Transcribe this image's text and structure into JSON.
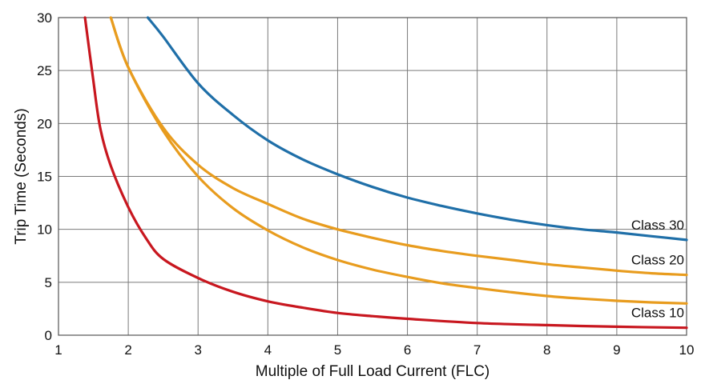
{
  "chart_data": {
    "type": "line",
    "title": "",
    "xlabel": "Multiple of Full Load Current (FLC)",
    "ylabel": "Trip Time (Seconds)",
    "xlim": [
      1,
      10
    ],
    "ylim": [
      0,
      30
    ],
    "xticks": [
      1,
      2,
      3,
      4,
      5,
      6,
      7,
      8,
      9,
      10
    ],
    "yticks": [
      0,
      5,
      10,
      15,
      20,
      25,
      30
    ],
    "grid": true,
    "legend": "none",
    "series": [
      {
        "name": "Class 30",
        "color": "#1f6fa8",
        "x": [
          2.28,
          2.5,
          3,
          3.5,
          4,
          4.5,
          5,
          5.5,
          6,
          6.5,
          7,
          7.5,
          8,
          8.5,
          9,
          9.5,
          10
        ],
        "y": [
          30,
          28.2,
          23.8,
          20.8,
          18.4,
          16.6,
          15.2,
          14.0,
          13.0,
          12.2,
          11.5,
          10.9,
          10.4,
          10.0,
          9.7,
          9.35,
          9.0
        ]
      },
      {
        "name": "Class 20",
        "color": "#e89c1e",
        "x": [
          1.75,
          2,
          2.5,
          3,
          3.5,
          4,
          4.5,
          5,
          5.5,
          6,
          6.5,
          7,
          7.5,
          8,
          8.5,
          9,
          9.5,
          10
        ],
        "y": [
          30,
          25.3,
          19.6,
          16.1,
          13.9,
          12.4,
          11.0,
          10.0,
          9.2,
          8.5,
          7.95,
          7.5,
          7.1,
          6.7,
          6.4,
          6.1,
          5.85,
          5.7
        ]
      },
      {
        "name": "",
        "color": "#e89c1e",
        "x": [
          1.75,
          2,
          2.5,
          3,
          3.5,
          4,
          4.5,
          5,
          5.5,
          6,
          6.5,
          7,
          7.5,
          8,
          8.5,
          9,
          9.5,
          10
        ],
        "y": [
          30,
          25.3,
          19.3,
          15.0,
          12.0,
          9.9,
          8.3,
          7.1,
          6.2,
          5.5,
          4.9,
          4.45,
          4.05,
          3.7,
          3.45,
          3.25,
          3.1,
          3.0
        ]
      },
      {
        "name": "Class 10",
        "color": "#c8171f",
        "x": [
          1.38,
          1.5,
          1.6,
          1.75,
          2,
          2.25,
          2.5,
          3,
          3.5,
          4,
          4.5,
          5,
          5.5,
          6,
          7,
          8,
          9,
          10
        ],
        "y": [
          30,
          24.0,
          19.5,
          16.0,
          12.1,
          9.2,
          7.2,
          5.4,
          4.1,
          3.2,
          2.6,
          2.1,
          1.8,
          1.55,
          1.15,
          0.95,
          0.8,
          0.7
        ]
      }
    ],
    "annotations": [
      "Class 30",
      "Class 20",
      "Class 10"
    ]
  }
}
